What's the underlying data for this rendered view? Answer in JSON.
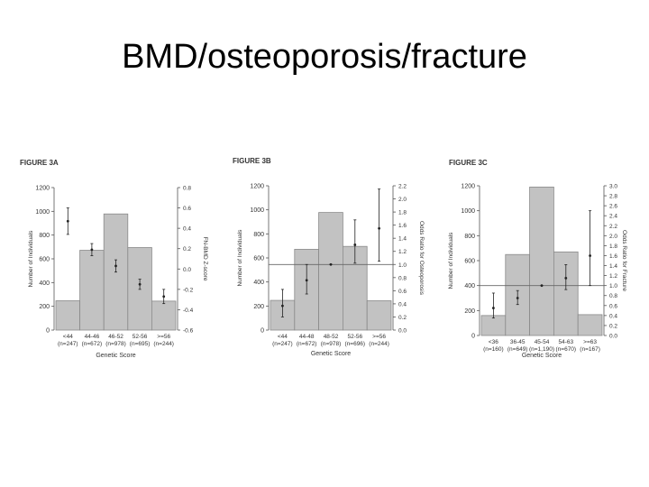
{
  "slide": {
    "title": "BMD/osteoporosis/fracture"
  },
  "colors": {
    "bar": "#c2c2c2",
    "bar_stroke": "#8a8a8a",
    "axis": "#555555",
    "text": "#333333",
    "point": "#222222"
  },
  "chart_data": [
    {
      "type": "bar",
      "title": "FIGURE 3A",
      "xlabel": "Genetic Score",
      "ylabel": "Number of Individuals",
      "y2label": "FN-BMD Z-score",
      "categories": [
        "<44",
        "44-46",
        "46-52",
        "52-56",
        ">=56"
      ],
      "n_labels": [
        "(n=247)",
        "(n=672)",
        "(n=978)",
        "(n=695)",
        "(n=244)"
      ],
      "values": [
        247,
        672,
        978,
        695,
        244
      ],
      "ylim": [
        0,
        1200
      ],
      "yticks": [
        0,
        200,
        400,
        600,
        800,
        1000,
        1200
      ],
      "y2lim": [
        -0.6,
        0.8
      ],
      "y2ticks": [
        -0.6,
        -0.4,
        -0.2,
        0.0,
        0.2,
        0.4,
        0.6,
        0.8
      ],
      "y2ticklabels": [
        "-0.6",
        "-0.4",
        "-0.2",
        "0.0",
        "0.2",
        "0.4",
        "0.6",
        "0.8"
      ],
      "secondary_series": {
        "name": "FN-BMD Z-score",
        "points": [
          0.47,
          0.19,
          0.03,
          -0.15,
          -0.27
        ],
        "err_low": [
          0.34,
          0.13,
          -0.03,
          -0.2,
          -0.34
        ],
        "err_high": [
          0.6,
          0.25,
          0.09,
          -0.1,
          -0.2
        ]
      }
    },
    {
      "type": "bar",
      "title": "FIGURE 3B",
      "xlabel": "Genetic Score",
      "ylabel": "Number of Individuals",
      "y2label": "Odds Ratio for Osteoporosis",
      "categories": [
        "<44",
        "44-48",
        "48-52",
        "52-56",
        ">=56"
      ],
      "n_labels": [
        "(n=247)",
        "(n=672)",
        "(n=978)",
        "(n=696)",
        "(n=244)"
      ],
      "values": [
        247,
        672,
        978,
        696,
        244
      ],
      "ylim": [
        0,
        1200
      ],
      "yticks": [
        0,
        200,
        400,
        600,
        800,
        1000,
        1200
      ],
      "y2lim": [
        0,
        2.2
      ],
      "y2ticks": [
        0,
        0.2,
        0.4,
        0.6,
        0.8,
        1.0,
        1.2,
        1.4,
        1.6,
        1.8,
        2.0,
        2.2
      ],
      "y2ticklabels": [
        "0.0",
        "0.2",
        "0.4",
        "0.6",
        "0.8",
        "1.0",
        "1.2",
        "1.4",
        "1.6",
        "1.8",
        "2.0",
        "2.2"
      ],
      "reference_line": 1.0,
      "secondary_series": {
        "name": "Odds Ratio for Osteoporosis",
        "points": [
          0.37,
          0.76,
          1.0,
          1.3,
          1.55
        ],
        "err_low": [
          0.2,
          0.55,
          1.0,
          1.02,
          1.05
        ],
        "err_high": [
          0.62,
          1.0,
          1.0,
          1.68,
          2.15
        ]
      }
    },
    {
      "type": "bar",
      "title": "FIGURE 3C",
      "xlabel": "Genetic Score",
      "ylabel": "Number of Individuals",
      "y2label": "Odds Ratio for Fracture",
      "categories": [
        "<36",
        "36-45",
        "45-54",
        "54-63",
        ">=63"
      ],
      "n_labels": [
        "(n=160)",
        "(n=649)",
        "(n=1,190)",
        "(n=670)",
        "(n=167)"
      ],
      "values": [
        160,
        649,
        1190,
        670,
        167
      ],
      "ylim": [
        0,
        1200
      ],
      "yticks": [
        0,
        200,
        400,
        600,
        800,
        1000,
        1200
      ],
      "y2lim": [
        0,
        3.0
      ],
      "y2ticks": [
        0,
        0.2,
        0.4,
        0.6,
        0.8,
        1.0,
        1.2,
        1.4,
        1.6,
        1.8,
        2.0,
        2.2,
        2.4,
        2.6,
        2.8,
        3.0
      ],
      "y2ticklabels": [
        "0.0",
        "0.2",
        "0.4",
        "0.6",
        "0.8",
        "1.0",
        "1.2",
        "1.4",
        "1.6",
        "1.8",
        "2.0",
        "2.2",
        "2.4",
        "2.6",
        "2.8",
        "3.0"
      ],
      "reference_line": 1.0,
      "secondary_series": {
        "name": "Odds Ratio for Fracture",
        "points": [
          0.55,
          0.75,
          1.0,
          1.15,
          1.6
        ],
        "err_low": [
          0.35,
          0.62,
          1.0,
          0.92,
          1.0
        ],
        "err_high": [
          0.85,
          0.9,
          1.0,
          1.42,
          2.5
        ]
      }
    }
  ]
}
